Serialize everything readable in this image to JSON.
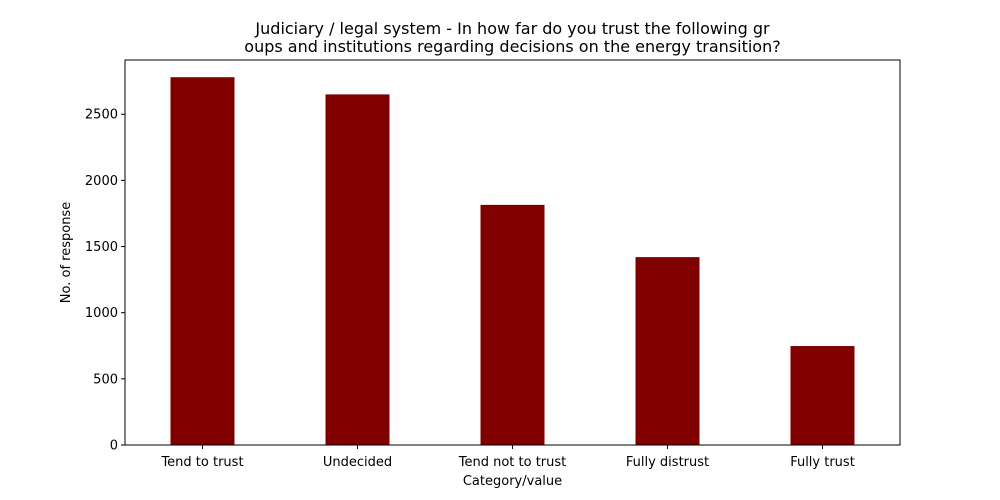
{
  "chart_data": {
    "type": "bar",
    "title_lines": [
      "Judiciary / legal system - In how far do you trust the following gr",
      "oups and institutions regarding decisions on the energy transition?"
    ],
    "xlabel": "Category/value",
    "ylabel": "No. of response",
    "categories": [
      "Tend to trust",
      "Undecided",
      "Tend not to trust",
      "Fully distrust",
      "Fully trust"
    ],
    "values": [
      2780,
      2650,
      1815,
      1420,
      748
    ],
    "ylim": [
      0,
      2910
    ],
    "yticks": [
      0,
      500,
      1000,
      1500,
      2000,
      2500
    ],
    "ytick_labels": [
      "0",
      "500",
      "1000",
      "1500",
      "2000",
      "2500"
    ],
    "bar_color": "#800000",
    "grid": false,
    "legend": "none"
  }
}
